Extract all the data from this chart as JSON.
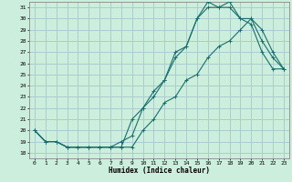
{
  "xlabel": "Humidex (Indice chaleur)",
  "bg_color": "#cceedd",
  "grid_color": "#aacccc",
  "line_color": "#1a6e6e",
  "xlim": [
    -0.5,
    23.5
  ],
  "ylim": [
    17.5,
    31.5
  ],
  "xticks": [
    0,
    1,
    2,
    3,
    4,
    5,
    6,
    7,
    8,
    9,
    10,
    11,
    12,
    13,
    14,
    15,
    16,
    17,
    18,
    19,
    20,
    21,
    22,
    23
  ],
  "yticks": [
    18,
    19,
    20,
    21,
    22,
    23,
    24,
    25,
    26,
    27,
    28,
    29,
    30,
    31
  ],
  "line1_x": [
    0,
    1,
    2,
    3,
    4,
    5,
    6,
    7,
    8,
    9,
    10,
    11,
    12,
    13,
    14,
    15,
    16,
    17,
    18,
    19,
    20,
    21,
    22,
    23
  ],
  "line1_y": [
    20,
    19,
    19,
    18.5,
    18.5,
    18.5,
    18.5,
    18.5,
    18.5,
    21,
    22,
    23,
    24.5,
    27,
    27.5,
    30,
    31,
    31,
    31,
    30,
    30,
    28,
    26.5,
    25.5
  ],
  "line2_x": [
    0,
    1,
    2,
    3,
    4,
    5,
    6,
    7,
    8,
    9,
    10,
    11,
    12,
    13,
    14,
    15,
    16,
    17,
    18,
    19,
    20,
    21,
    22,
    23
  ],
  "line2_y": [
    20,
    19,
    19,
    18.5,
    18.5,
    18.5,
    18.5,
    18.5,
    19,
    19.5,
    22,
    23.5,
    24.5,
    26.5,
    27.5,
    30,
    31.5,
    31,
    31.5,
    30,
    29.5,
    27,
    25.5,
    25.5
  ],
  "line3_x": [
    0,
    1,
    2,
    3,
    4,
    5,
    6,
    7,
    8,
    9,
    10,
    11,
    12,
    13,
    14,
    15,
    16,
    17,
    18,
    19,
    20,
    21,
    22,
    23
  ],
  "line3_y": [
    20,
    19,
    19,
    18.5,
    18.5,
    18.5,
    18.5,
    18.5,
    18.5,
    18.5,
    20,
    21,
    22.5,
    23,
    24.5,
    25,
    26.5,
    27.5,
    28,
    29,
    30,
    29,
    27,
    25.5
  ]
}
